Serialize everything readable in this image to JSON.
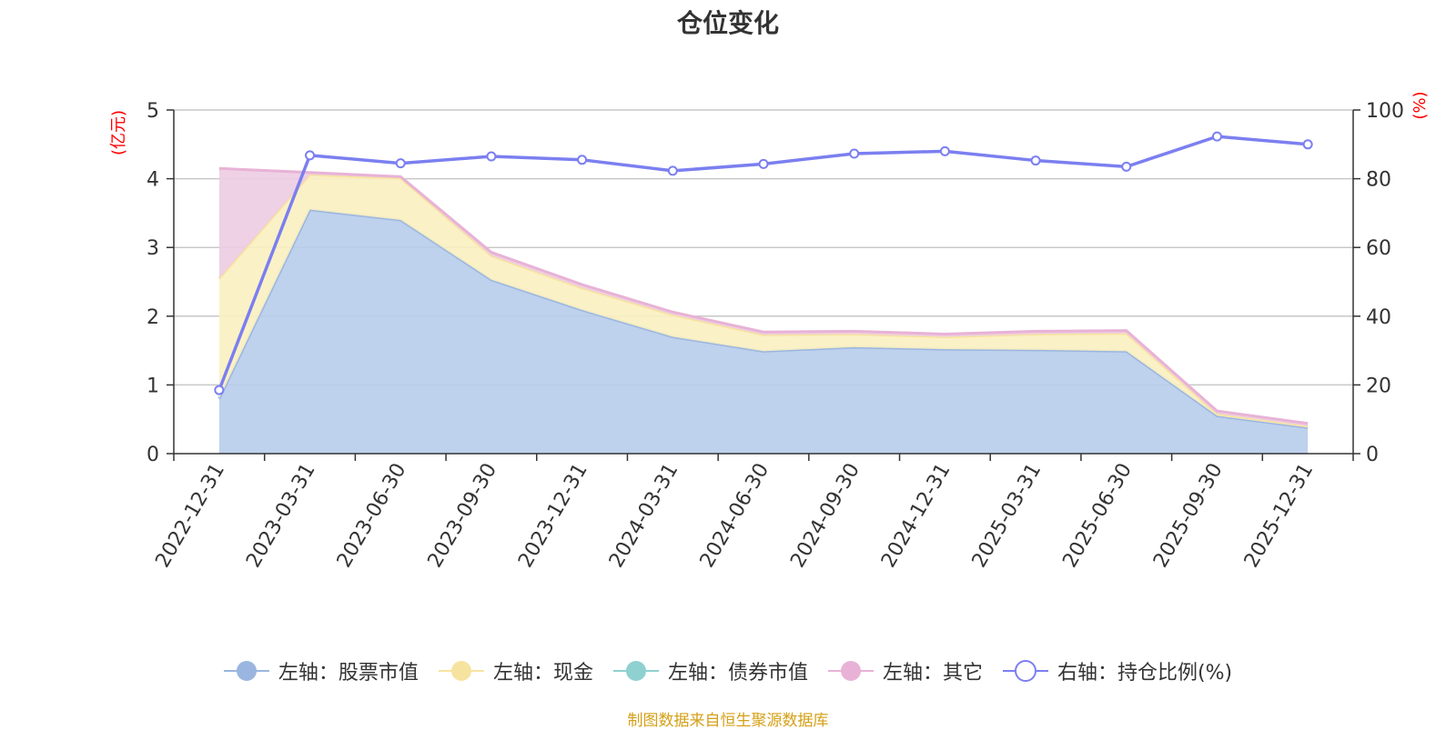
{
  "chart_data": {
    "type": "area",
    "title": "仓位变化",
    "categories": [
      "2022-12-31",
      "2023-03-31",
      "2023-06-30",
      "2023-09-30",
      "2023-12-31",
      "2024-03-31",
      "2024-06-30",
      "2024-09-30",
      "2024-12-31",
      "2025-03-31",
      "2025-06-30",
      "2025-09-30",
      "2025-12-31"
    ],
    "y_left": {
      "label": "(亿元)",
      "min": 0,
      "max": 5,
      "ticks": [
        "0",
        "1",
        "2",
        "3",
        "4",
        "5"
      ]
    },
    "y_right": {
      "label": "(%)",
      "min": 0,
      "max": 100,
      "ticks": [
        "0",
        "20",
        "40",
        "60",
        "80",
        "100"
      ]
    },
    "grid": true,
    "legend_position": "bottom",
    "series": [
      {
        "name": "左轴：股票市值",
        "axis": "left",
        "color": "#9ab6e0",
        "fill": "#b7cceb",
        "values": [
          0.8,
          3.55,
          3.4,
          2.53,
          2.09,
          1.7,
          1.49,
          1.55,
          1.52,
          1.51,
          1.49,
          0.55,
          0.38
        ]
      },
      {
        "name": "左轴：现金",
        "axis": "left",
        "color": "#f7e3a0",
        "fill": "#fbefc0",
        "values": [
          1.75,
          0.51,
          0.61,
          0.35,
          0.32,
          0.32,
          0.24,
          0.19,
          0.18,
          0.23,
          0.26,
          0.03,
          0.02
        ]
      },
      {
        "name": "左轴：债券市值",
        "axis": "left",
        "color": "#8fd0d0",
        "fill": "#bfe4e4",
        "values": [
          0,
          0,
          0,
          0,
          0,
          0,
          0,
          0,
          0,
          0,
          0,
          0,
          0
        ]
      },
      {
        "name": "左轴：其它",
        "axis": "left",
        "color": "#e8b2d6",
        "fill": "#edcce3",
        "values": [
          1.6,
          0.03,
          0.02,
          0.05,
          0.05,
          0.04,
          0.04,
          0.04,
          0.04,
          0.04,
          0.04,
          0.04,
          0.04
        ]
      },
      {
        "name": "右轴：持仓比例(%)",
        "axis": "right",
        "color": "#7b7ff0",
        "line_only": true,
        "values": [
          18.5,
          86.8,
          84.5,
          86.5,
          85.5,
          82.3,
          84.3,
          87.3,
          88.0,
          85.3,
          83.5,
          92.3,
          90.0
        ]
      }
    ]
  },
  "source_text": "制图数据来自恒生聚源数据库"
}
